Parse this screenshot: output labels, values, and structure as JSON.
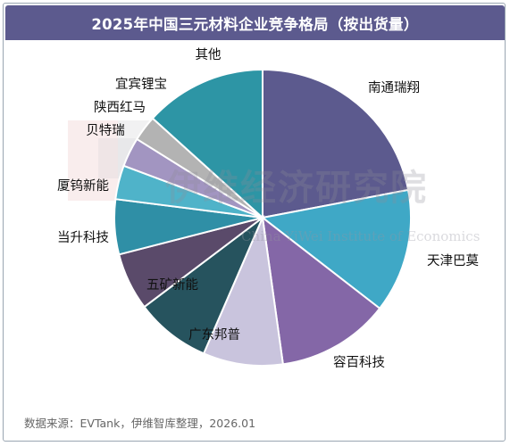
{
  "title": "2025年中国三元材料企业竞争格局（按出货量）",
  "source": "数据来源：EVTank，伊维智库整理，2026.01",
  "watermark": {
    "cn": "伊维经济研究院",
    "en": "China YiWei Institute of Economics",
    "logo_text": "智库",
    "logo_letters": "EVTank"
  },
  "chart_data": {
    "type": "pie",
    "title": "2025年中国三元材料企业竞争格局（按出货量）",
    "unit": "percent (estimated from slice angles)",
    "slices": [
      {
        "name": "南通瑞翔",
        "value": 22.0,
        "color": "#5c5a8e"
      },
      {
        "name": "天津巴莫",
        "value": 13.5,
        "color": "#3fa8c6"
      },
      {
        "name": "容百科技",
        "value": 12.3,
        "color": "#8467a7"
      },
      {
        "name": "广东邦普",
        "value": 8.7,
        "color": "#c9c4dd"
      },
      {
        "name": "五矿新能",
        "value": 8.2,
        "color": "#26535e"
      },
      {
        "name": "当升科技",
        "value": 6.3,
        "color": "#5a4a6a"
      },
      {
        "name": "厦钨新能",
        "value": 6.0,
        "color": "#2f8fa6"
      },
      {
        "name": "贝特瑞",
        "value": 3.7,
        "color": "#4fb3c9"
      },
      {
        "name": "陕西红马",
        "value": 3.2,
        "color": "#a295c1"
      },
      {
        "name": "宜宾锂宝",
        "value": 2.8,
        "color": "#b3b3b3"
      },
      {
        "name": "其他",
        "value": 13.3,
        "color": "#2d95a5"
      }
    ],
    "start_angle_deg": 0,
    "direction": "clockwise",
    "legend": "none (labels beside slices)"
  }
}
